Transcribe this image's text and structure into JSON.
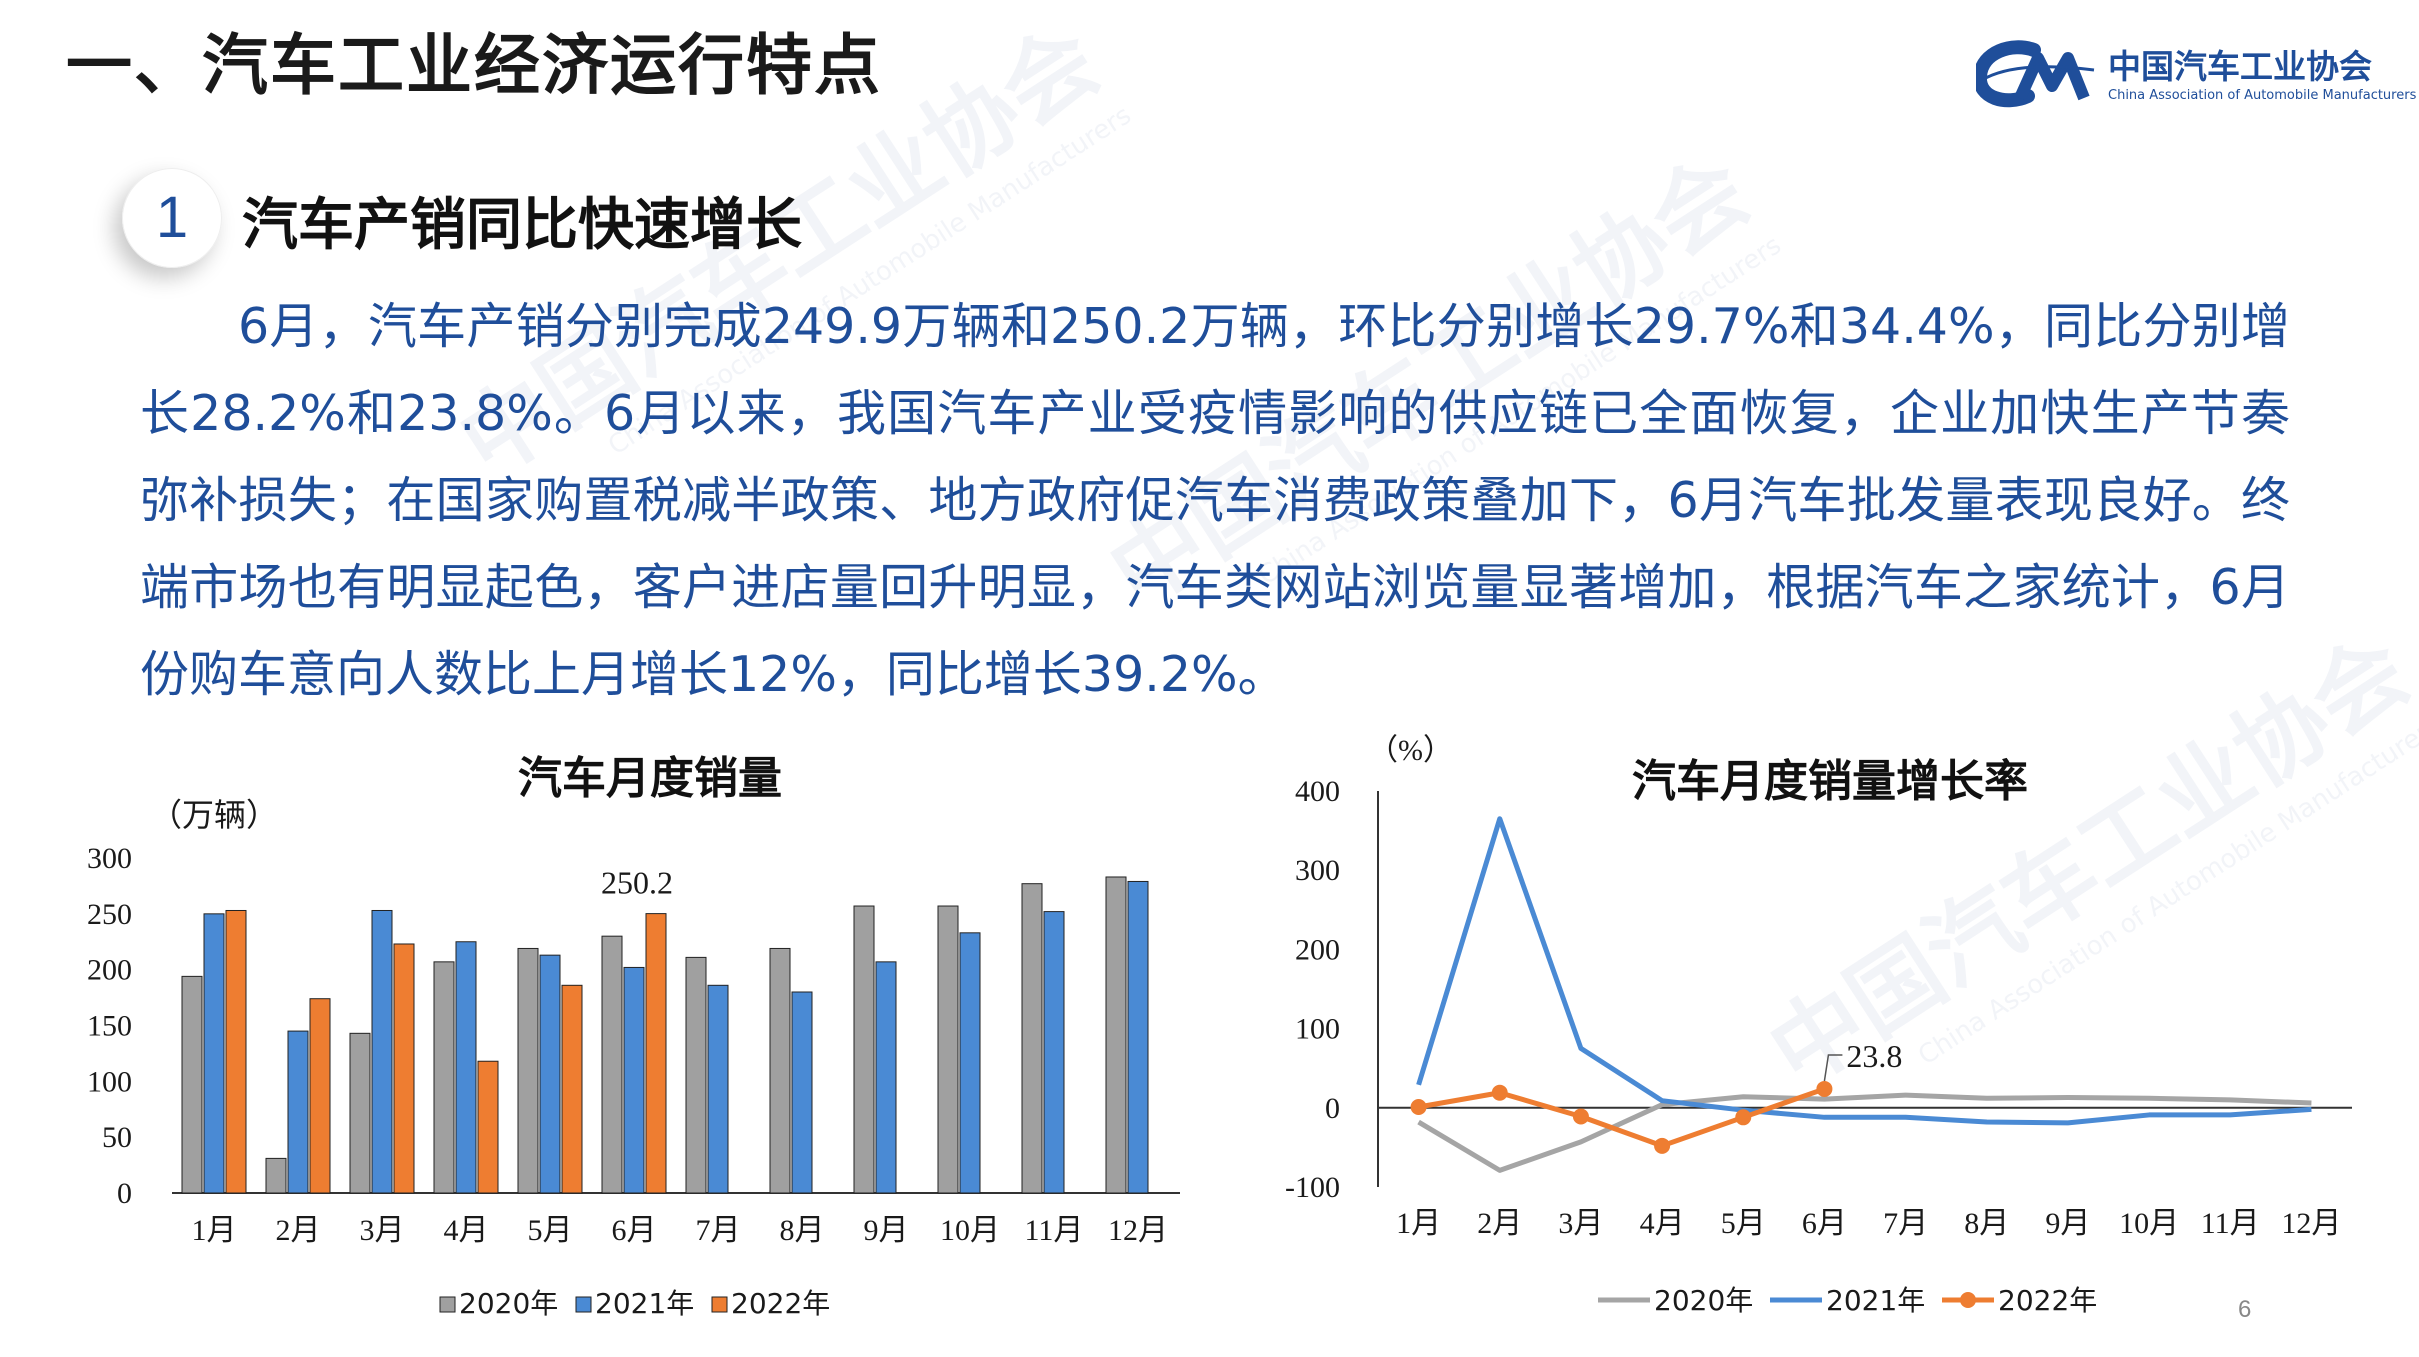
{
  "header": {
    "title": "一、汽车工业经济运行特点"
  },
  "logo": {
    "name": "中国汽车工业协会",
    "subtitle": "China Association of Automobile Manufacturers"
  },
  "section": {
    "number": "1",
    "title": "汽车产销同比快速增长"
  },
  "paragraph": "6月，汽车产销分别完成249.9万辆和250.2万辆，环比分别增长29.7%和34.4%，同比分别增长28.2%和23.8%。6月以来，我国汽车产业受疫情影响的供应链已全面恢复，企业加快生产节奏弥补损失；在国家购置税减半政策、地方政府促汽车消费政策叠加下，6月汽车批发量表现良好。终端市场也有明显起色，客户进店量回升明显，汽车类网站浏览量显著增加，根据汽车之家统计，6月份购车意向人数比上月增长12%，同比增长39.2%。",
  "watermark": {
    "cn": "中国汽车工业协会",
    "en": "China Association of Automobile Manufacturers"
  },
  "page_number": "6",
  "chart_data": [
    {
      "type": "bar",
      "title": "汽车月度销量",
      "ylabel": "（万辆）",
      "categories": [
        "1月",
        "2月",
        "3月",
        "4月",
        "5月",
        "6月",
        "7月",
        "8月",
        "9月",
        "10月",
        "11月",
        "12月"
      ],
      "ylim": [
        0,
        300
      ],
      "yticks": [
        0,
        50,
        100,
        150,
        200,
        250,
        300
      ],
      "series": [
        {
          "name": "2020年",
          "color": "#a0a0a0",
          "values": [
            194,
            31,
            143,
            207,
            219,
            230,
            211,
            219,
            257,
            257,
            277,
            283
          ]
        },
        {
          "name": "2021年",
          "color": "#4a8ad4",
          "values": [
            250,
            145,
            253,
            225,
            213,
            202,
            186,
            180,
            207,
            233,
            252,
            279
          ]
        },
        {
          "name": "2022年",
          "color": "#ee7d31",
          "values": [
            253,
            174,
            223,
            118,
            186,
            250.2,
            null,
            null,
            null,
            null,
            null,
            null
          ]
        }
      ],
      "annotations": [
        {
          "text": "250.2",
          "series": "2022年",
          "category": "6月"
        }
      ],
      "legend_position": "bottom",
      "grid": false
    },
    {
      "type": "line",
      "title": "汽车月度销量增长率",
      "ylabel": "（%）",
      "categories": [
        "1月",
        "2月",
        "3月",
        "4月",
        "5月",
        "6月",
        "7月",
        "8月",
        "9月",
        "10月",
        "11月",
        "12月"
      ],
      "ylim": [
        -100,
        400
      ],
      "yticks": [
        -100,
        0,
        100,
        200,
        300,
        400
      ],
      "series": [
        {
          "name": "2020年",
          "color": "#a5a5a5",
          "values": [
            -18,
            -79,
            -43,
            4,
            14,
            11,
            16,
            12,
            13,
            12,
            10,
            6
          ]
        },
        {
          "name": "2021年",
          "color": "#4a8ad4",
          "values": [
            29,
            365,
            75,
            9,
            -3,
            -12,
            -12,
            -18,
            -19,
            -9,
            -9,
            -2
          ]
        },
        {
          "name": "2022年",
          "color": "#ee7d31",
          "values": [
            1,
            19,
            -11,
            -48,
            -12,
            23.8,
            null,
            null,
            null,
            null,
            null,
            null
          ]
        }
      ],
      "annotations": [
        {
          "text": "23.8",
          "series": "2022年",
          "category": "6月"
        }
      ],
      "legend_position": "bottom",
      "grid": false
    }
  ]
}
